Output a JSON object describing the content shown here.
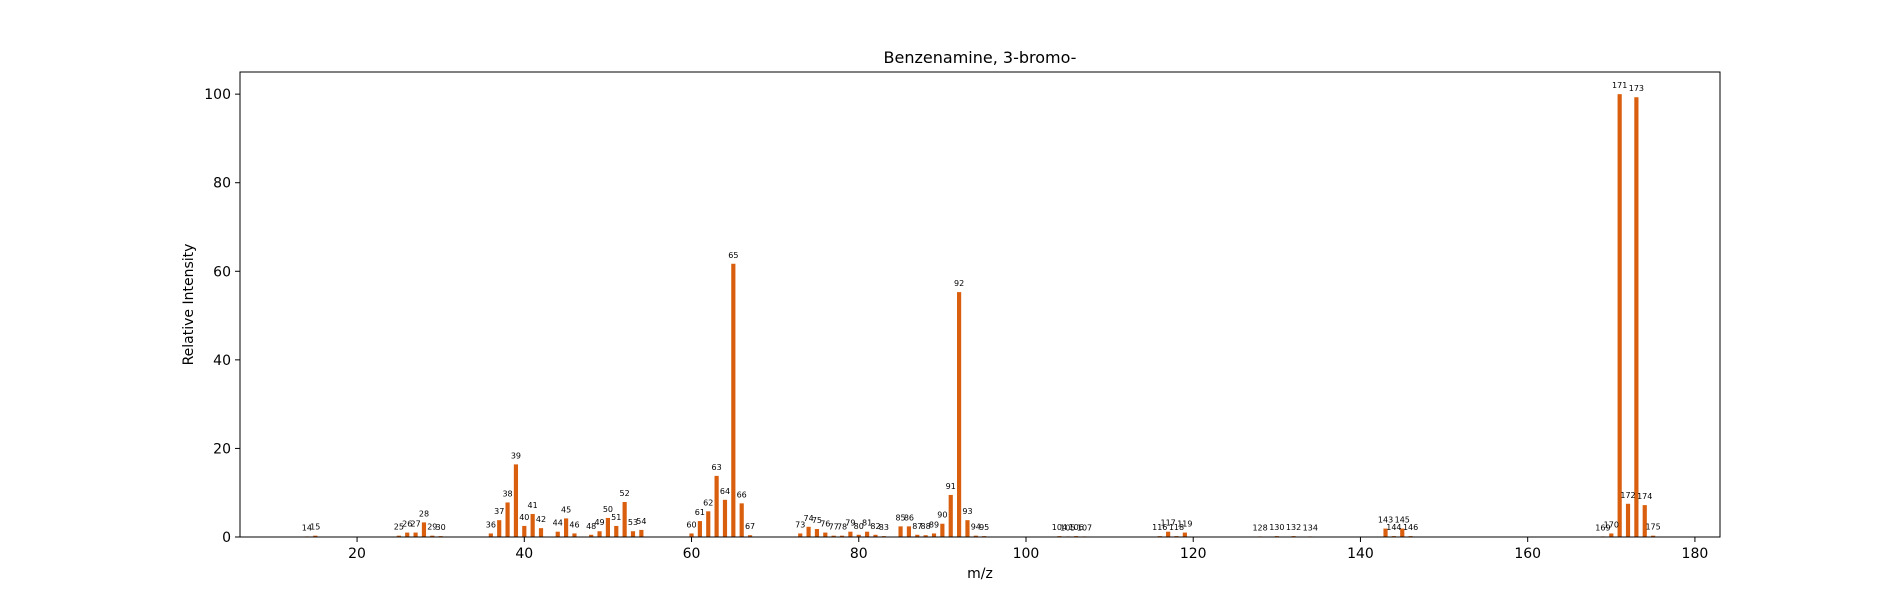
{
  "chart_data": {
    "type": "bar",
    "title": "Benzenamine, 3-bromo-",
    "xlabel": "m/z",
    "ylabel": "Relative Intensity",
    "xlim": [
      6,
      183
    ],
    "ylim": [
      0,
      105
    ],
    "xticks": [
      20,
      40,
      60,
      80,
      100,
      120,
      140,
      160,
      180
    ],
    "yticks": [
      0,
      20,
      40,
      60,
      80,
      100
    ],
    "grid": false,
    "bar_color": "#d95f0e",
    "points": [
      {
        "x": 14,
        "y": 0.1
      },
      {
        "x": 15,
        "y": 0.3
      },
      {
        "x": 25,
        "y": 0.3
      },
      {
        "x": 26,
        "y": 1.0
      },
      {
        "x": 27,
        "y": 1.0
      },
      {
        "x": 28,
        "y": 3.3
      },
      {
        "x": 29,
        "y": 0.3
      },
      {
        "x": 30,
        "y": 0.2
      },
      {
        "x": 36,
        "y": 0.8
      },
      {
        "x": 37,
        "y": 3.8
      },
      {
        "x": 38,
        "y": 7.8
      },
      {
        "x": 39,
        "y": 16.4
      },
      {
        "x": 40,
        "y": 2.5
      },
      {
        "x": 41,
        "y": 5.2
      },
      {
        "x": 42,
        "y": 2.0
      },
      {
        "x": 44,
        "y": 1.2
      },
      {
        "x": 45,
        "y": 4.2
      },
      {
        "x": 46,
        "y": 0.8
      },
      {
        "x": 48,
        "y": 0.5
      },
      {
        "x": 49,
        "y": 1.3
      },
      {
        "x": 50,
        "y": 4.3
      },
      {
        "x": 51,
        "y": 2.5
      },
      {
        "x": 52,
        "y": 7.9
      },
      {
        "x": 53,
        "y": 1.3
      },
      {
        "x": 54,
        "y": 1.6
      },
      {
        "x": 60,
        "y": 0.8
      },
      {
        "x": 61,
        "y": 3.6
      },
      {
        "x": 62,
        "y": 5.8
      },
      {
        "x": 63,
        "y": 13.8
      },
      {
        "x": 64,
        "y": 8.4
      },
      {
        "x": 65,
        "y": 61.7
      },
      {
        "x": 66,
        "y": 7.6
      },
      {
        "x": 67,
        "y": 0.4
      },
      {
        "x": 73,
        "y": 0.8
      },
      {
        "x": 74,
        "y": 2.3
      },
      {
        "x": 75,
        "y": 1.8
      },
      {
        "x": 76,
        "y": 1.0
      },
      {
        "x": 77,
        "y": 0.3
      },
      {
        "x": 78,
        "y": 0.3
      },
      {
        "x": 79,
        "y": 1.2
      },
      {
        "x": 80,
        "y": 0.5
      },
      {
        "x": 81,
        "y": 1.2
      },
      {
        "x": 82,
        "y": 0.5
      },
      {
        "x": 83,
        "y": 0.2
      },
      {
        "x": 85,
        "y": 2.4
      },
      {
        "x": 86,
        "y": 2.4
      },
      {
        "x": 87,
        "y": 0.5
      },
      {
        "x": 88,
        "y": 0.4
      },
      {
        "x": 89,
        "y": 0.8
      },
      {
        "x": 90,
        "y": 3.0
      },
      {
        "x": 91,
        "y": 9.5
      },
      {
        "x": 92,
        "y": 55.3
      },
      {
        "x": 93,
        "y": 3.8
      },
      {
        "x": 94,
        "y": 0.3
      },
      {
        "x": 95,
        "y": 0.2
      },
      {
        "x": 104,
        "y": 0.2
      },
      {
        "x": 105,
        "y": 0.1
      },
      {
        "x": 106,
        "y": 0.2
      },
      {
        "x": 107,
        "y": 0.1
      },
      {
        "x": 116,
        "y": 0.2
      },
      {
        "x": 117,
        "y": 1.2
      },
      {
        "x": 118,
        "y": 0.2
      },
      {
        "x": 119,
        "y": 1.0
      },
      {
        "x": 128,
        "y": 0.1
      },
      {
        "x": 130,
        "y": 0.2
      },
      {
        "x": 132,
        "y": 0.2
      },
      {
        "x": 134,
        "y": 0.1
      },
      {
        "x": 143,
        "y": 1.9
      },
      {
        "x": 144,
        "y": 0.2
      },
      {
        "x": 145,
        "y": 1.9
      },
      {
        "x": 146,
        "y": 0.2
      },
      {
        "x": 169,
        "y": 0.1
      },
      {
        "x": 170,
        "y": 0.8
      },
      {
        "x": 171,
        "y": 100.0
      },
      {
        "x": 172,
        "y": 7.5
      },
      {
        "x": 173,
        "y": 99.3
      },
      {
        "x": 174,
        "y": 7.2
      },
      {
        "x": 175,
        "y": 0.3
      }
    ]
  }
}
